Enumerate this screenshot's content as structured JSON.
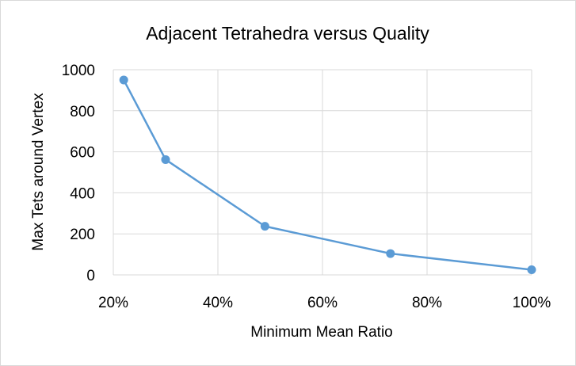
{
  "chart_data": {
    "type": "scatter",
    "title": "Adjacent Tetrahedra versus Quality",
    "xlabel": "Minimum Mean Ratio",
    "ylabel": "Max Tets around Vertex",
    "xlim": [
      0.2,
      1.0
    ],
    "ylim": [
      0,
      1000
    ],
    "x_ticks": [
      "20%",
      "40%",
      "60%",
      "80%",
      "100%"
    ],
    "y_ticks": [
      "0",
      "200",
      "400",
      "600",
      "800",
      "1000"
    ],
    "grid": true,
    "legend": "none",
    "series": [
      {
        "x": [
          0.22,
          0.3,
          0.49,
          0.73,
          1.0
        ],
        "y": [
          950,
          562,
          237,
          104,
          25
        ],
        "style": "line-with-markers"
      }
    ],
    "colors": {
      "series": "#5b9bd5",
      "grid": "#d9d9d9"
    }
  }
}
